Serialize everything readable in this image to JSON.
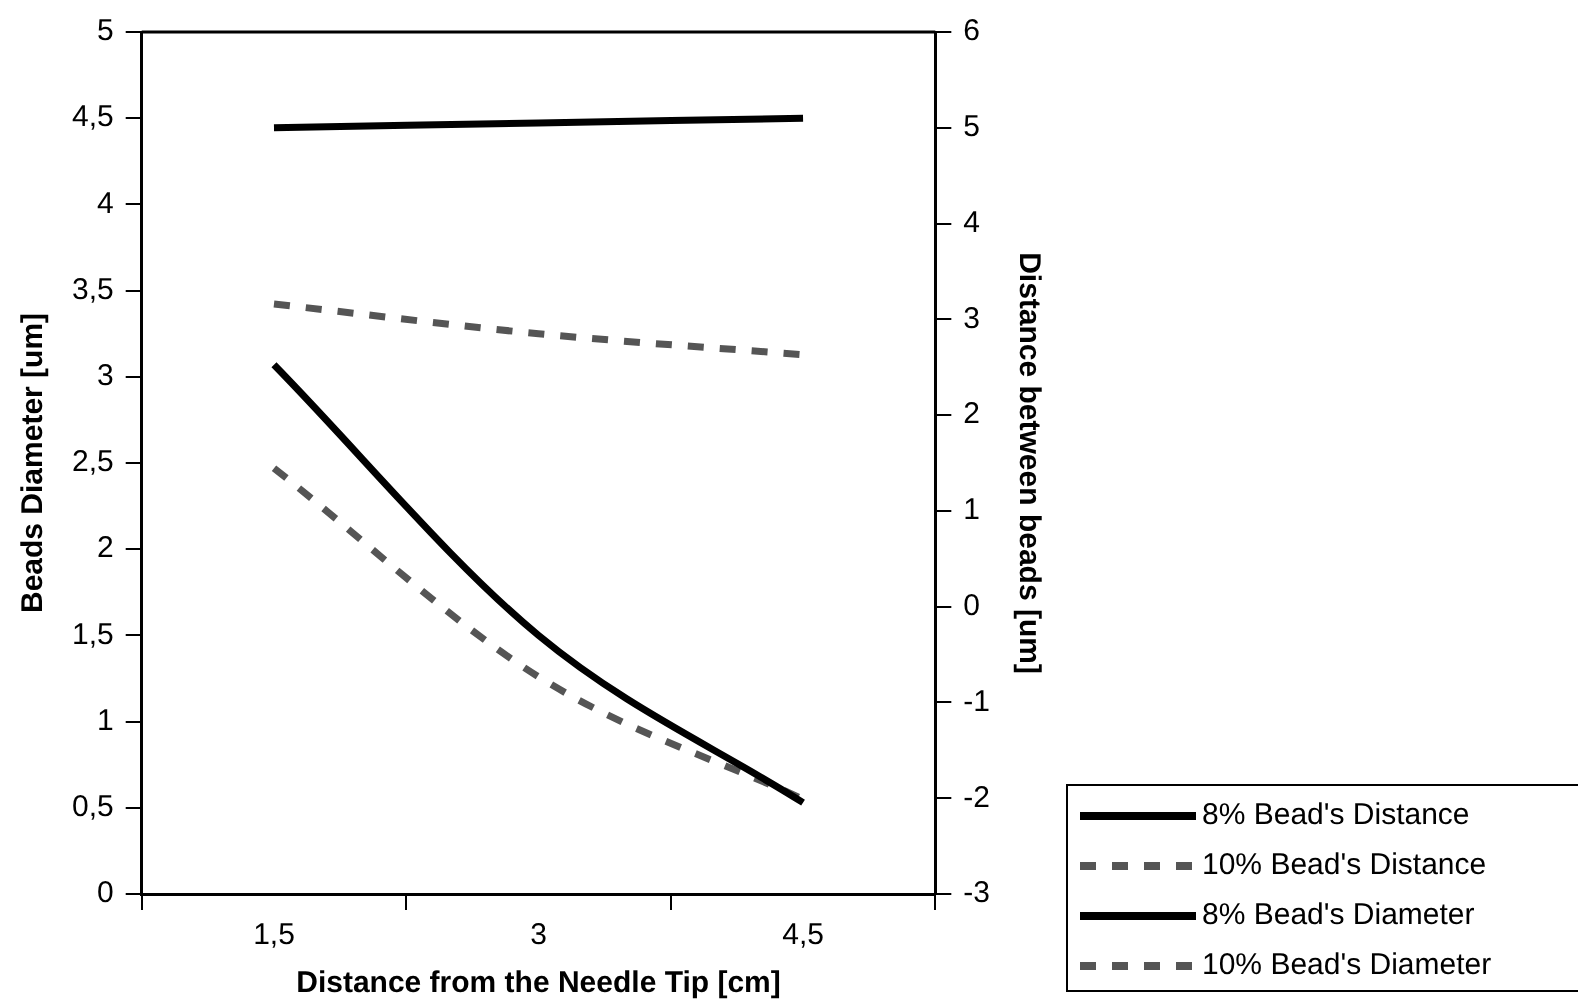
{
  "chart_data": {
    "type": "line",
    "xlabel": "Distance from the Needle Tip [cm]",
    "ylabel": "Beads Diameter [um]",
    "y2label": "Distance between beads [um]",
    "categories": [
      "1,5",
      "3",
      "4,5"
    ],
    "ylim": [
      0,
      5
    ],
    "yticks": [
      0,
      {
        "value": 0.5,
        "label": "0,5"
      },
      1,
      {
        "value": 1.5,
        "label": "1,5"
      },
      2,
      {
        "value": 2.5,
        "label": "2,5"
      },
      3,
      {
        "value": 3.5,
        "label": "3,5"
      },
      4,
      {
        "value": 4.5,
        "label": "4,5"
      },
      5
    ],
    "y2lim": [
      -3,
      6
    ],
    "y2ticks": [
      -3,
      -2,
      -1,
      0,
      1,
      2,
      3,
      4,
      5,
      6
    ],
    "grid": false,
    "legend": "bottom right",
    "marker": "none",
    "series": [
      {
        "name": "8% Bead's Distance",
        "color": "#000000",
        "axis": "y2",
        "line_style": "solid",
        "values": [
          5.0,
          5.05,
          5.1
        ]
      },
      {
        "name": "10% Bead's Distance",
        "color": "#555555",
        "axis": "y2",
        "line_style": "dashed",
        "values": [
          3.16,
          2.85,
          2.63
        ]
      },
      {
        "name": "8% Bead's Diameter",
        "color": "#000000",
        "line_style": "solid",
        "values": [
          3.07,
          1.5,
          0.53
        ]
      },
      {
        "name": "10% Bead's Diameter",
        "color": "#555555",
        "line_style": "dashed",
        "values": [
          2.47,
          1.26,
          0.55
        ]
      }
    ]
  }
}
